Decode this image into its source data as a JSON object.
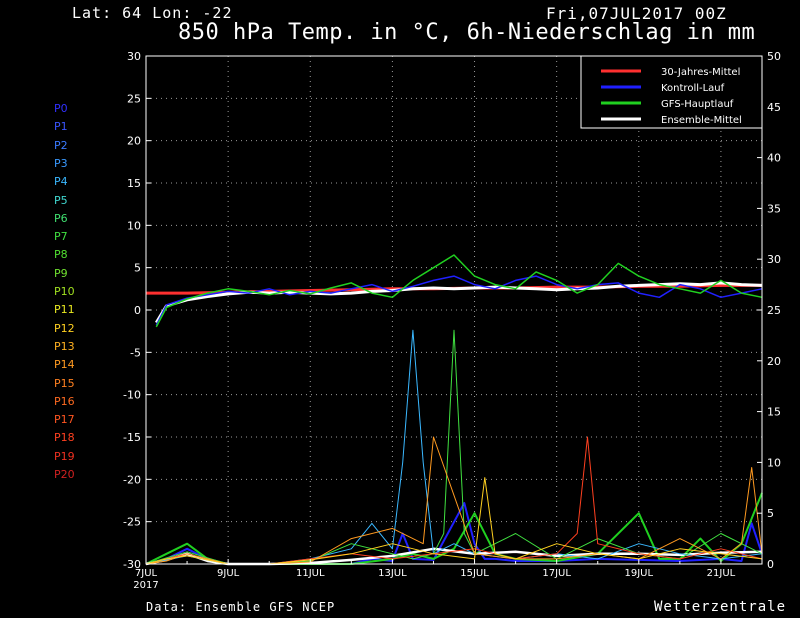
{
  "header": {
    "location": "Lat: 64 Lon: -22",
    "date": "Fri,07JUL2017 00Z",
    "title": "850 hPa Temp. in °C, 6h-Niederschlag in mm"
  },
  "footer": {
    "source": "Data: Ensemble GFS NCEP",
    "brand": "Wetterzentrale"
  },
  "members": [
    {
      "label": "P0",
      "color": "#3030ff"
    },
    {
      "label": "P1",
      "color": "#3a55ff"
    },
    {
      "label": "P2",
      "color": "#3a7aff"
    },
    {
      "label": "P3",
      "color": "#3a9aff"
    },
    {
      "label": "P4",
      "color": "#3ab8ff"
    },
    {
      "label": "P5",
      "color": "#40d8d0"
    },
    {
      "label": "P6",
      "color": "#40e070"
    },
    {
      "label": "P7",
      "color": "#40e040"
    },
    {
      "label": "P8",
      "color": "#50e030"
    },
    {
      "label": "P9",
      "color": "#70e030"
    },
    {
      "label": "P10",
      "color": "#a0e020"
    },
    {
      "label": "P11",
      "color": "#e8e820"
    },
    {
      "label": "P12",
      "color": "#ffd020"
    },
    {
      "label": "P13",
      "color": "#ffb020"
    },
    {
      "label": "P14",
      "color": "#ff9a20"
    },
    {
      "label": "P15",
      "color": "#ff8020"
    },
    {
      "label": "P16",
      "color": "#ff6a20"
    },
    {
      "label": "P17",
      "color": "#ff5520"
    },
    {
      "label": "P18",
      "color": "#ff4020"
    },
    {
      "label": "P19",
      "color": "#f03020"
    },
    {
      "label": "P20",
      "color": "#d02020"
    }
  ],
  "chart_data": {
    "type": "line",
    "legend_position": "top-right",
    "grid": true,
    "x_ticks": [
      "7JUL",
      "9JUL",
      "11JUL",
      "13JUL",
      "15JUL",
      "17JUL",
      "19JUL",
      "21JUL"
    ],
    "x_year_label": "2017",
    "x_range_days": [
      0,
      15
    ],
    "y_left": {
      "min": -30,
      "max": 30,
      "ticks": [
        30,
        25,
        20,
        15,
        10,
        5,
        0,
        -5,
        -10,
        -15,
        -20,
        -25,
        -30
      ]
    },
    "y_right": {
      "min": 0,
      "max": 50,
      "ticks": [
        50,
        45,
        40,
        35,
        30,
        25,
        20,
        15,
        10,
        5,
        0
      ]
    },
    "legend": [
      {
        "name": "30-Jahres-Mittel",
        "color": "#ff3030"
      },
      {
        "name": "Kontroll-Lauf",
        "color": "#2020ff"
      },
      {
        "name": "GFS-Hauptlauf",
        "color": "#20d020"
      },
      {
        "name": "Ensemble-Mittel",
        "color": "#ffffff"
      }
    ],
    "temperature_series": [
      {
        "name": "30-Jahres-Mittel",
        "color": "#ff3030",
        "width": 3,
        "x": [
          0,
          1,
          2,
          3,
          4,
          5,
          6,
          7,
          8,
          9,
          10,
          11,
          12,
          13,
          14,
          15
        ],
        "y": [
          2.0,
          2.0,
          2.1,
          2.2,
          2.3,
          2.4,
          2.5,
          2.5,
          2.6,
          2.6,
          2.7,
          2.7,
          2.8,
          2.8,
          2.9,
          2.9
        ]
      },
      {
        "name": "Ensemble-Mittel",
        "color": "#ffffff",
        "width": 3,
        "x": [
          0.25,
          0.5,
          1,
          1.5,
          2,
          2.5,
          3,
          3.5,
          4,
          4.5,
          5,
          5.5,
          6,
          6.5,
          7,
          7.5,
          8,
          8.5,
          9,
          9.5,
          10,
          10.5,
          11,
          11.5,
          12,
          12.5,
          13,
          13.5,
          14,
          14.5,
          15
        ],
        "y": [
          -1.5,
          0.5,
          1.2,
          1.6,
          1.9,
          2.1,
          2.0,
          2.1,
          2.0,
          1.9,
          2.0,
          2.2,
          2.3,
          2.5,
          2.6,
          2.5,
          2.6,
          2.7,
          2.6,
          2.5,
          2.4,
          2.5,
          2.6,
          2.8,
          2.9,
          3.0,
          3.1,
          3.0,
          3.2,
          3.0,
          2.9
        ]
      },
      {
        "name": "Kontroll-Lauf",
        "color": "#2020ff",
        "width": 1.5,
        "x": [
          0.25,
          0.5,
          1,
          1.5,
          2,
          2.5,
          3,
          3.5,
          4,
          4.5,
          5,
          5.5,
          6,
          6.5,
          7,
          7.5,
          8,
          8.5,
          9,
          9.5,
          10,
          10.5,
          11,
          11.5,
          12,
          12.5,
          13,
          13.5,
          14,
          14.5,
          15
        ],
        "y": [
          -1.8,
          0.6,
          1.4,
          1.8,
          2.2,
          2.0,
          2.5,
          1.8,
          2.2,
          2.0,
          2.5,
          3.0,
          2.2,
          2.8,
          3.5,
          4.0,
          3.0,
          2.5,
          3.5,
          4.0,
          3.0,
          2.5,
          3.0,
          3.2,
          2.0,
          1.5,
          3.0,
          2.5,
          1.5,
          2.0,
          2.5
        ]
      },
      {
        "name": "GFS-Hauptlauf",
        "color": "#20d020",
        "width": 1.5,
        "x": [
          0.25,
          0.5,
          1,
          1.5,
          2,
          2.5,
          3,
          3.5,
          4,
          4.5,
          5,
          5.5,
          6,
          6.5,
          7,
          7.5,
          8,
          8.5,
          9,
          9.5,
          10,
          10.5,
          11,
          11.5,
          12,
          12.5,
          13,
          13.5,
          14,
          14.5,
          15
        ],
        "y": [
          -2.0,
          0.3,
          1.3,
          2.0,
          2.5,
          2.2,
          1.8,
          2.3,
          1.9,
          2.6,
          3.2,
          2.0,
          1.5,
          3.5,
          5.0,
          6.5,
          4.0,
          3.0,
          2.5,
          4.5,
          3.5,
          2.0,
          3.0,
          5.5,
          4.0,
          3.0,
          2.5,
          2.0,
          3.5,
          2.0,
          1.5
        ]
      }
    ],
    "precip_series": [
      {
        "name": "Kontroll-Lauf",
        "color": "#2020ff",
        "width": 2,
        "x": [
          0,
          0.5,
          1,
          1.25,
          1.5,
          2,
          3,
          4,
          5,
          5.5,
          6,
          6.25,
          6.5,
          7,
          7.75,
          8,
          8.25,
          8.5,
          9,
          10,
          11,
          12,
          13,
          14,
          14.5,
          14.75,
          15
        ],
        "y": [
          0,
          0.5,
          1.5,
          1.0,
          0.4,
          0,
          0,
          0,
          0,
          0.5,
          0.3,
          3.0,
          0.5,
          0.4,
          6.0,
          2.0,
          0.5,
          0.5,
          0.3,
          0.3,
          0.5,
          0.4,
          0.3,
          0.5,
          0.3,
          4.0,
          1.0
        ]
      },
      {
        "name": "GFS-Hauptlauf",
        "color": "#20d020",
        "width": 2,
        "x": [
          0,
          0.5,
          1,
          1.5,
          2,
          3,
          4,
          5,
          6,
          6.5,
          7,
          7.5,
          8,
          8.5,
          9,
          10,
          11,
          12,
          12.5,
          13,
          13.5,
          14,
          14.5,
          15
        ],
        "y": [
          0,
          1.0,
          2.0,
          0.5,
          0,
          0,
          0,
          0,
          0.5,
          1.0,
          0.5,
          1.5,
          5.0,
          1.0,
          0.5,
          0.3,
          1.0,
          5.0,
          0.5,
          0.5,
          2.5,
          0.3,
          2.0,
          7.0
        ]
      },
      {
        "name": "Ensemble-Mittel",
        "color": "#ffffff",
        "width": 2.5,
        "x": [
          0,
          0.5,
          1,
          1.5,
          2,
          3,
          4,
          5,
          6,
          7,
          8,
          9,
          10,
          11,
          12,
          13,
          14,
          15
        ],
        "y": [
          0,
          0.4,
          1.0,
          0.3,
          0,
          0,
          0.1,
          0.4,
          0.8,
          1.5,
          1.0,
          1.2,
          0.8,
          1.0,
          1.0,
          0.9,
          1.1,
          1.2
        ]
      },
      {
        "name": "P4",
        "color": "#3ab8ff",
        "width": 1,
        "x": [
          0,
          0.5,
          1,
          2,
          3,
          4,
          5,
          5.5,
          6,
          6.25,
          6.5,
          6.75,
          7,
          7.5,
          8,
          9,
          10,
          11,
          12,
          13,
          14,
          15
        ],
        "y": [
          0,
          0.4,
          0.8,
          0,
          0,
          0.5,
          1.5,
          4.0,
          1.5,
          10.0,
          23.0,
          10.0,
          1.0,
          2.0,
          1.0,
          0.5,
          1.0,
          0.5,
          2.0,
          1.0,
          0.5,
          1.0
        ]
      },
      {
        "name": "P7",
        "color": "#40e040",
        "width": 1,
        "x": [
          0,
          0.5,
          1,
          2,
          3,
          4,
          5,
          6,
          6.5,
          7,
          7.25,
          7.5,
          7.75,
          8,
          9,
          10,
          11,
          12,
          13,
          14,
          15
        ],
        "y": [
          0,
          0.6,
          1.2,
          0,
          0,
          0.3,
          2.0,
          1.0,
          0.5,
          1.0,
          3.0,
          23.0,
          3.0,
          1.0,
          3.0,
          0.5,
          2.5,
          1.0,
          0.5,
          3.0,
          1.0
        ]
      },
      {
        "name": "P18",
        "color": "#ff4020",
        "width": 1,
        "x": [
          0,
          0.5,
          1,
          2,
          3,
          4,
          5,
          6,
          7,
          8,
          9,
          10,
          10.5,
          10.75,
          11,
          12,
          13,
          14,
          15
        ],
        "y": [
          0,
          0.5,
          1.0,
          0,
          0,
          0.5,
          1.0,
          0.5,
          1.0,
          1.5,
          0.5,
          1.0,
          3.0,
          12.5,
          2.0,
          1.0,
          0.5,
          1.5,
          0.5
        ]
      },
      {
        "name": "P14",
        "color": "#ff9a20",
        "width": 1,
        "x": [
          0,
          0.5,
          1,
          2,
          3,
          4,
          5,
          6,
          6.75,
          7,
          8,
          9,
          10,
          11,
          12,
          13,
          14,
          14.5,
          14.75,
          15
        ],
        "y": [
          0,
          0.3,
          1.0,
          0,
          0,
          0.2,
          2.5,
          3.5,
          2.0,
          12.5,
          1.0,
          0.5,
          0.5,
          1.0,
          0.5,
          2.5,
          0.5,
          2.0,
          9.5,
          1.0
        ]
      },
      {
        "name": "P12",
        "color": "#ffd020",
        "width": 1,
        "x": [
          0,
          0.5,
          1,
          2,
          3,
          4,
          5,
          6,
          7,
          8,
          8.25,
          8.5,
          9,
          10,
          11,
          12,
          13,
          14,
          15
        ],
        "y": [
          0,
          0.5,
          0.8,
          0,
          0,
          0.4,
          1.0,
          2.0,
          1.0,
          0.5,
          8.5,
          1.0,
          0.5,
          2.0,
          1.0,
          0.5,
          1.5,
          1.0,
          0.5
        ]
      }
    ]
  }
}
